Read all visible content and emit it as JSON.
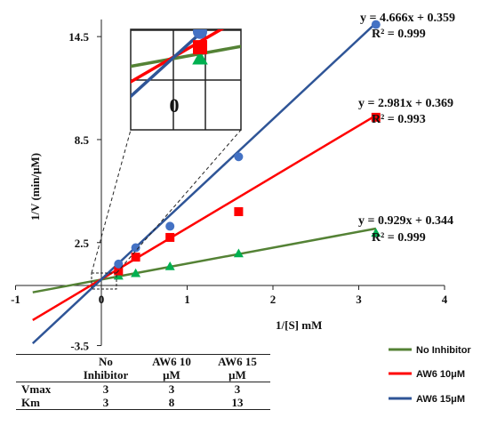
{
  "chart_data": {
    "type": "scatter",
    "xlabel": "1/[S] mM",
    "ylabel": "1/V (min/μM)",
    "xlim": [
      -1,
      4
    ],
    "ylim": [
      -3.5,
      15.5
    ],
    "x_ticks": [
      -1,
      0,
      1,
      2,
      3,
      4
    ],
    "y_ticks": [
      -3.5,
      2.5,
      8.5,
      14.5
    ],
    "legend_position": "bottom-right",
    "series": [
      {
        "name": "No Inhibitor",
        "color": "#548235",
        "marker": "triangle",
        "x": [
          0.2,
          0.4,
          0.8,
          1.6,
          3.2
        ],
        "y": [
          0.55,
          0.7,
          1.1,
          1.85,
          3.05
        ],
        "trendline": {
          "slope": 0.929,
          "intercept": 0.344,
          "equation": "y = 0.929x + 0.344",
          "r2": "R² = 0.999"
        }
      },
      {
        "name": "AW6 10μM",
        "color": "#ff0000",
        "marker": "square",
        "x": [
          0.2,
          0.4,
          0.8,
          1.6,
          3.2
        ],
        "y": [
          0.85,
          1.65,
          2.8,
          4.3,
          9.8
        ],
        "trendline": {
          "slope": 2.981,
          "intercept": 0.369,
          "equation": "y = 2.981x + 0.369",
          "r2": "R² = 0.993"
        }
      },
      {
        "name": "AW6 15μM",
        "color": "#2f5597",
        "marker": "circle",
        "x": [
          0.2,
          0.4,
          0.8,
          1.6,
          3.2
        ],
        "y": [
          1.25,
          2.2,
          3.45,
          7.5,
          15.2
        ],
        "trendline": {
          "slope": 4.666,
          "intercept": 0.359,
          "equation": "y = 4.666x + 0.359",
          "r2": "R² = 0.999"
        }
      }
    ],
    "inset": {
      "description_label": "0"
    }
  },
  "table": {
    "headers": [
      "",
      "No Inhibitor",
      "AW6 10 μM",
      "AW6 15 μM"
    ],
    "rows": [
      {
        "label": "Vmax",
        "values": [
          "3",
          "3",
          "3"
        ]
      },
      {
        "label": "Km",
        "values": [
          "3",
          "8",
          "13"
        ]
      }
    ]
  }
}
